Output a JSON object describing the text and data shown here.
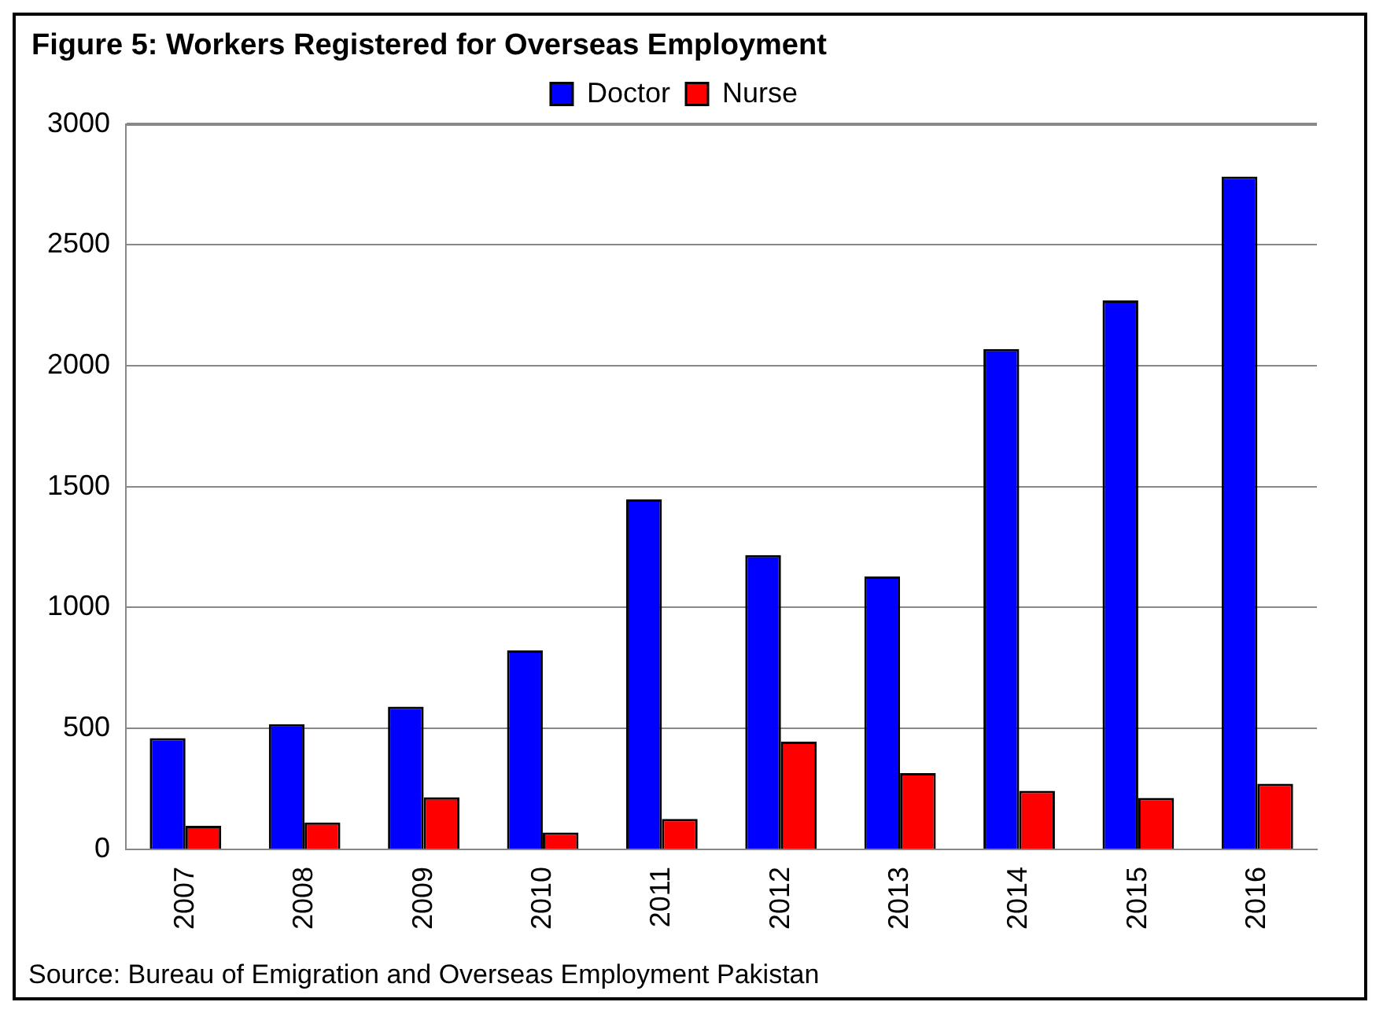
{
  "chart_data": {
    "type": "bar",
    "title": "Figure 5: Workers Registered for Overseas Employment",
    "categories": [
      "2007",
      "2008",
      "2009",
      "2010",
      "2011",
      "2012",
      "2013",
      "2014",
      "2015",
      "2016"
    ],
    "series": [
      {
        "name": "Doctor",
        "color": "#0000ff",
        "values": [
          460,
          518,
          590,
          823,
          1447,
          1217,
          1128,
          2069,
          2270,
          2782
        ]
      },
      {
        "name": "Nurse",
        "color": "#ff0000",
        "values": [
          97,
          111,
          215,
          70,
          126,
          445,
          315,
          242,
          213,
          271
        ]
      }
    ],
    "ylim": [
      0,
      3000
    ],
    "yticks": [
      0,
      500,
      1000,
      1500,
      2000,
      2500,
      3000
    ],
    "grid": "y",
    "legend": "top",
    "annotations": [
      "Source: Bureau of Emigration and Overseas Employment Pakistan"
    ]
  }
}
